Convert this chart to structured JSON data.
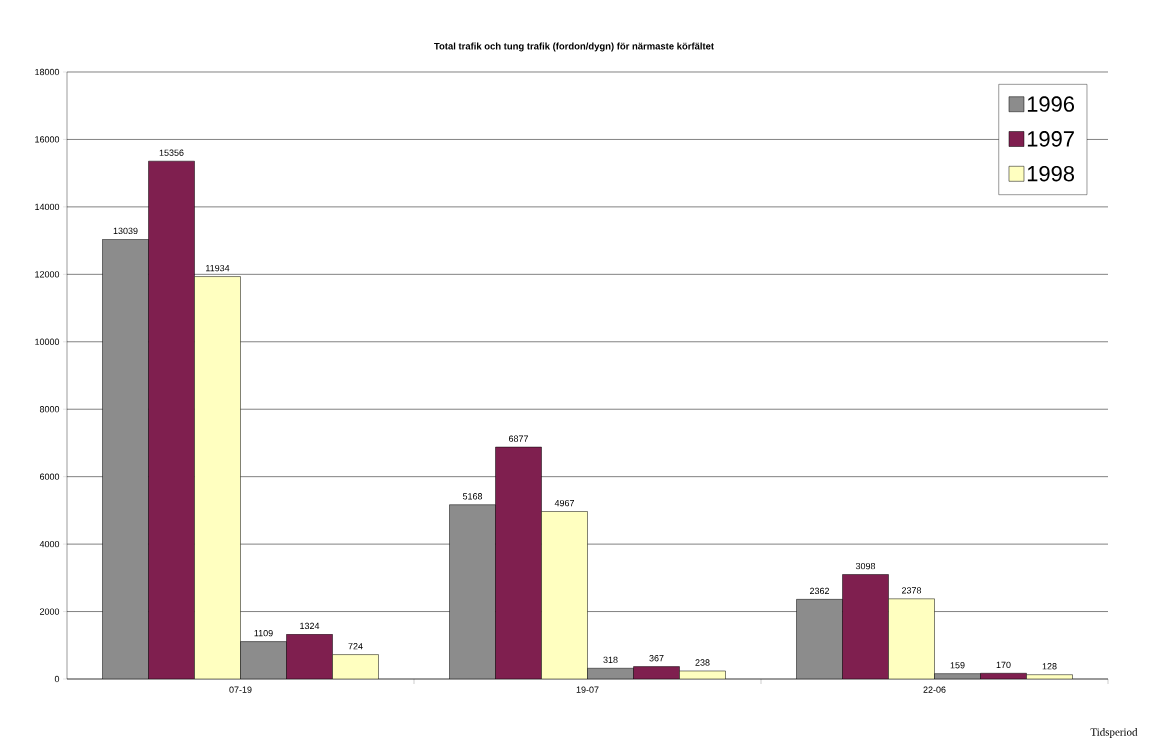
{
  "chart_data": {
    "type": "bar",
    "title": "Total trafik och tung trafik (fordon/dygn) för närmaste körfältet",
    "xlabel": "Tidsperiod",
    "categories": [
      "07-19",
      "19-07",
      "22-06"
    ],
    "series": [
      {
        "name": "1996",
        "color": "#8c8c8c",
        "values": [
          13039,
          5168,
          2362
        ]
      },
      {
        "name": "1997",
        "color": "#7f1f4f",
        "values": [
          15356,
          6877,
          3098
        ]
      },
      {
        "name": "1998",
        "color": "#ffffc0",
        "values": [
          11934,
          4967,
          2378
        ]
      },
      {
        "color": "#8c8c8c",
        "values": [
          1109,
          318,
          159
        ]
      },
      {
        "color": "#7f1f4f",
        "values": [
          1324,
          367,
          170
        ]
      },
      {
        "color": "#ffffc0",
        "values": [
          724,
          238,
          128
        ]
      }
    ],
    "ylim": [
      0,
      18000
    ],
    "yticks": [
      0,
      2000,
      4000,
      6000,
      8000,
      10000,
      12000,
      14000,
      16000,
      18000
    ],
    "grid": "y",
    "legend": "top right",
    "data_labels": true
  }
}
